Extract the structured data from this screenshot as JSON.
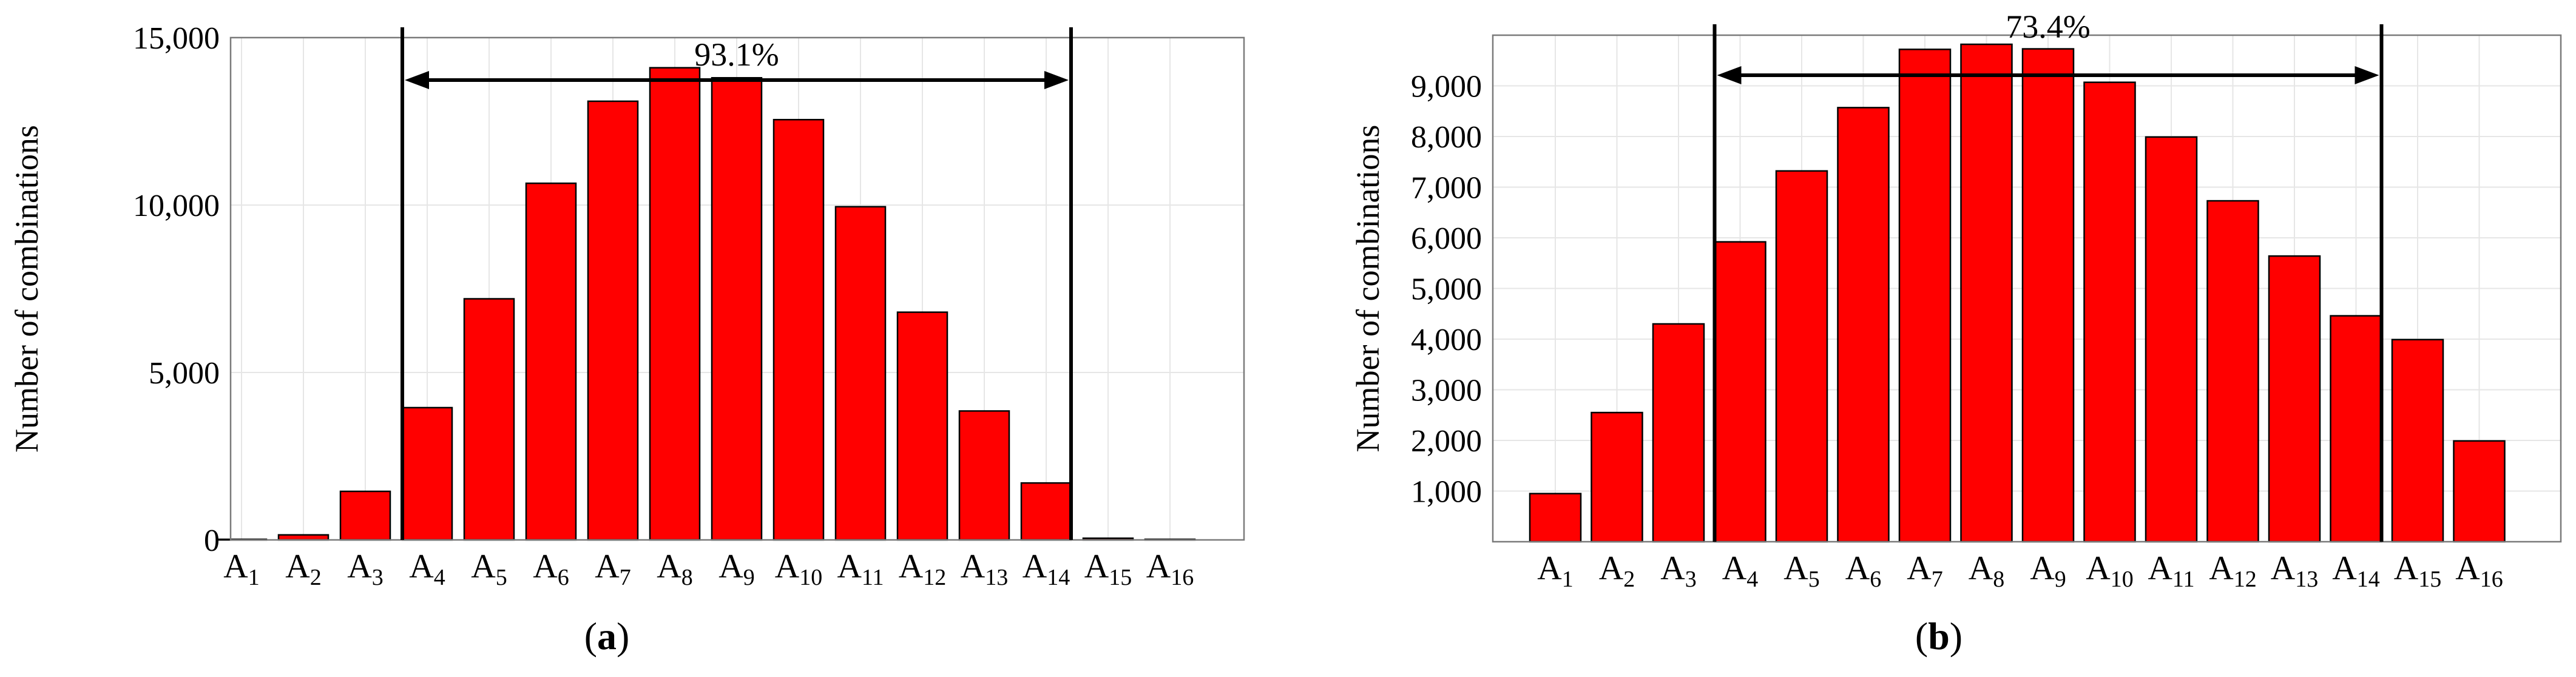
{
  "chart_data": [
    {
      "type": "bar",
      "caption": "(a)",
      "caption_open": "(",
      "caption_letter": "a",
      "caption_close": ")",
      "ylabel": "Number of combinations",
      "ylim": [
        0,
        15000
      ],
      "yticks": [
        0,
        5000,
        10000,
        15000
      ],
      "ytick_labels": [
        "0",
        "5,000",
        "10,000",
        "15,000"
      ],
      "categories": [
        "A1",
        "A2",
        "A3",
        "A4",
        "A5",
        "A6",
        "A7",
        "A8",
        "A9",
        "A10",
        "A11",
        "A12",
        "A13",
        "A14",
        "A15",
        "A16"
      ],
      "category_main": [
        "A",
        "A",
        "A",
        "A",
        "A",
        "A",
        "A",
        "A",
        "A",
        "A",
        "A",
        "A",
        "A",
        "A",
        "A",
        "A"
      ],
      "category_sub": [
        "1",
        "2",
        "3",
        "4",
        "5",
        "6",
        "7",
        "8",
        "9",
        "10",
        "11",
        "12",
        "13",
        "14",
        "15",
        "16"
      ],
      "values": [
        5,
        150,
        1450,
        3950,
        7200,
        10650,
        13100,
        14100,
        13800,
        12550,
        9950,
        6800,
        3850,
        1700,
        50,
        5
      ],
      "annotation": "93.1%",
      "annotation_range": [
        "A4",
        "A14"
      ],
      "grid": true,
      "bar_color": "#ff0000"
    },
    {
      "type": "bar",
      "caption": "(b)",
      "caption_open": "(",
      "caption_letter": "b",
      "caption_close": ")",
      "ylabel": "Number of combinations",
      "ylim": [
        0,
        10000
      ],
      "yticks": [
        1000,
        2000,
        3000,
        4000,
        5000,
        6000,
        7000,
        8000,
        9000
      ],
      "ytick_labels": [
        "1,000",
        "2,000",
        "3,000",
        "4,000",
        "5,000",
        "6,000",
        "7,000",
        "8,000",
        "9,000"
      ],
      "categories": [
        "A1",
        "A2",
        "A3",
        "A4",
        "A5",
        "A6",
        "A7",
        "A8",
        "A9",
        "A10",
        "A11",
        "A12",
        "A13",
        "A14",
        "A15",
        "A16"
      ],
      "category_main": [
        "A",
        "A",
        "A",
        "A",
        "A",
        "A",
        "A",
        "A",
        "A",
        "A",
        "A",
        "A",
        "A",
        "A",
        "A",
        "A"
      ],
      "category_sub": [
        "1",
        "2",
        "3",
        "4",
        "5",
        "6",
        "7",
        "8",
        "9",
        "10",
        "11",
        "12",
        "13",
        "14",
        "15",
        "16"
      ],
      "values": [
        950,
        2550,
        4300,
        5920,
        7320,
        8570,
        9720,
        9820,
        9730,
        9070,
        7990,
        6730,
        5640,
        4460,
        3990,
        1990
      ],
      "annotation": "73.4%",
      "annotation_range": [
        "A4",
        "A14"
      ],
      "grid": true,
      "bar_color": "#ff0000"
    }
  ]
}
